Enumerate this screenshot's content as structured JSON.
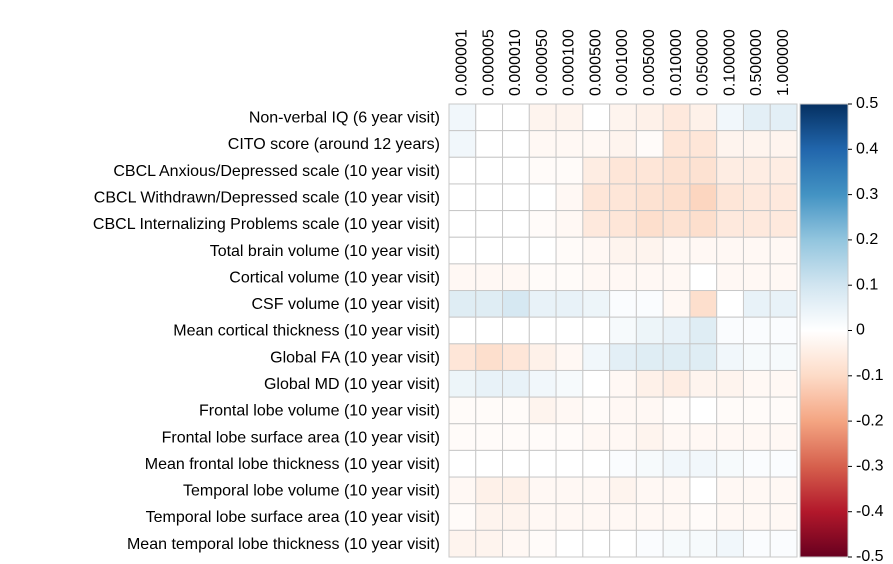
{
  "chart_data": {
    "type": "heatmap",
    "categories": [
      "0.000001",
      "0.000005",
      "0.000010",
      "0.000050",
      "0.000100",
      "0.000500",
      "0.001000",
      "0.005000",
      "0.010000",
      "0.050000",
      "0.100000",
      "0.500000",
      "1.000000"
    ],
    "rows": [
      "Non-verbal IQ (6 year visit)",
      "CITO score (around 12 years)",
      "CBCL Anxious/Depressed scale (10 year visit)",
      "CBCL Withdrawn/Depressed scale (10 year visit)",
      "CBCL Internalizing Problems scale (10 year visit)",
      "Total brain volume (10 year visit)",
      "Cortical volume (10 year visit)",
      "CSF volume (10 year visit)",
      "Mean cortical thickness (10 year visit)",
      "Global FA (10 year visit)",
      "Global MD (10 year visit)",
      "Frontal lobe volume (10 year visit)",
      "Frontal lobe surface area (10 year visit)",
      "Mean frontal lobe thickness (10 year visit)",
      "Temporal lobe volume (10 year visit)",
      "Temporal lobe surface area (10 year visit)",
      "Mean temporal lobe thickness (10 year visit)"
    ],
    "values": [
      [
        0.03,
        0,
        0,
        -0.03,
        -0.03,
        0,
        -0.03,
        -0.04,
        -0.06,
        -0.04,
        0.03,
        0.06,
        0.06
      ],
      [
        0.03,
        0,
        0,
        -0.02,
        -0.02,
        -0.02,
        -0.03,
        -0.01,
        -0.07,
        -0.07,
        -0.03,
        -0.03,
        -0.03
      ],
      [
        0,
        0,
        0,
        -0.01,
        -0.01,
        -0.05,
        -0.07,
        -0.07,
        -0.08,
        -0.08,
        -0.05,
        -0.05,
        -0.05
      ],
      [
        0,
        0,
        0,
        0,
        -0.02,
        -0.07,
        -0.07,
        -0.08,
        -0.09,
        -0.11,
        -0.07,
        -0.06,
        -0.06
      ],
      [
        0,
        0,
        0,
        -0.01,
        -0.02,
        -0.06,
        -0.07,
        -0.09,
        -0.08,
        -0.09,
        -0.06,
        -0.06,
        -0.06
      ],
      [
        0,
        0,
        0,
        0,
        -0.01,
        -0.02,
        -0.03,
        -0.03,
        -0.02,
        -0.02,
        -0.02,
        -0.02,
        -0.02
      ],
      [
        -0.02,
        -0.02,
        -0.02,
        -0.01,
        -0.01,
        -0.02,
        -0.02,
        -0.02,
        -0.02,
        0,
        -0.02,
        -0.02,
        -0.02
      ],
      [
        0.07,
        0.07,
        0.09,
        0.05,
        0.05,
        0.04,
        0.01,
        0.01,
        -0.02,
        -0.09,
        0,
        0.05,
        0.05
      ],
      [
        0,
        0,
        0,
        0,
        0,
        0,
        0.02,
        0.04,
        0.05,
        0.07,
        0.01,
        0.01,
        0.01
      ],
      [
        -0.07,
        -0.09,
        -0.07,
        -0.04,
        -0.02,
        0.03,
        0.06,
        0.07,
        0.07,
        0.07,
        0.03,
        0.02,
        0.02
      ],
      [
        0.04,
        0.05,
        0.05,
        0.03,
        0.02,
        0,
        -0.02,
        -0.04,
        -0.05,
        -0.03,
        -0.03,
        -0.02,
        -0.02
      ],
      [
        -0.01,
        -0.01,
        -0.01,
        -0.03,
        -0.02,
        -0.01,
        -0.02,
        -0.02,
        -0.01,
        0,
        -0.01,
        -0.01,
        -0.01
      ],
      [
        -0.01,
        -0.01,
        -0.01,
        -0.01,
        -0.01,
        -0.02,
        -0.02,
        -0.03,
        -0.02,
        -0.02,
        -0.02,
        -0.02,
        -0.02
      ],
      [
        0,
        0,
        0,
        0,
        0,
        0,
        0.01,
        0.02,
        0.03,
        0.03,
        0.02,
        0.01,
        0.01
      ],
      [
        -0.02,
        -0.04,
        -0.04,
        -0.02,
        -0.02,
        -0.02,
        -0.03,
        -0.02,
        -0.02,
        0,
        -0.02,
        -0.02,
        -0.02
      ],
      [
        -0.01,
        -0.03,
        -0.03,
        -0.02,
        -0.02,
        -0.02,
        -0.02,
        -0.02,
        -0.02,
        -0.01,
        -0.02,
        -0.02,
        -0.02
      ],
      [
        -0.03,
        -0.03,
        -0.02,
        -0.01,
        0,
        0,
        0,
        0.01,
        0.02,
        0.02,
        0.03,
        0.01,
        0.01
      ]
    ],
    "zlim": [
      -0.5,
      0.5
    ],
    "zticks": [
      0.5,
      0.4,
      0.3,
      0.2,
      0.1,
      0,
      -0.1,
      -0.2,
      -0.3,
      -0.4,
      -0.5
    ],
    "colorscale": [
      "#67001f",
      "#b2182b",
      "#d6604d",
      "#f4a582",
      "#fddbc7",
      "#ffffff",
      "#d1e5f0",
      "#92c5de",
      "#4393c3",
      "#2166ac",
      "#053061"
    ]
  }
}
